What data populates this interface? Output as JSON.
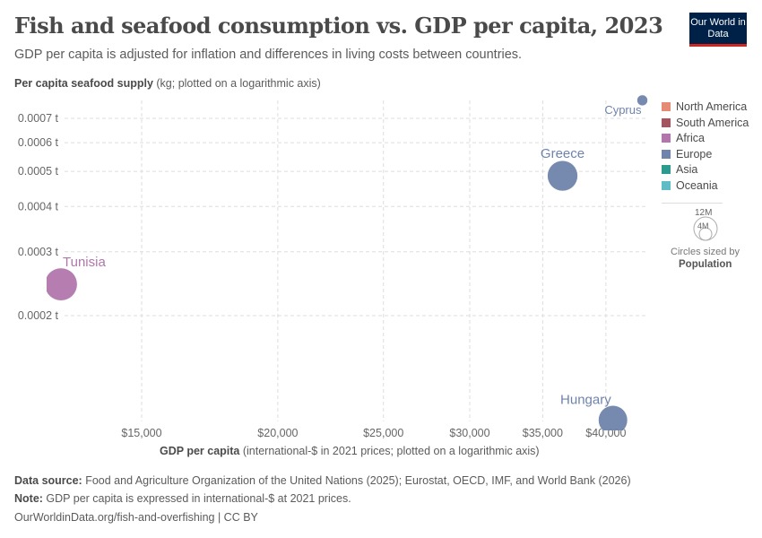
{
  "title": "Fish and seafood consumption vs. GDP per capita, 2023",
  "subtitle": "GDP per capita is adjusted for inflation and differences in living costs between countries.",
  "logo": "Our World in Data",
  "chart_data": {
    "type": "scatter",
    "ylabel_bold": "Per capita seafood supply",
    "ylabel_rest": " (kg; plotted on a logarithmic axis)",
    "xlabel_bold": "GDP per capita",
    "xlabel_rest": " (international-$ in 2021 prices; plotted on a logarithmic axis)",
    "xscale": "log",
    "yscale": "log",
    "xticks": [
      {
        "v": 15000,
        "label": "$15,000"
      },
      {
        "v": 20000,
        "label": "$20,000"
      },
      {
        "v": 25000,
        "label": "$25,000"
      },
      {
        "v": 30000,
        "label": "$30,000"
      },
      {
        "v": 35000,
        "label": "$35,000"
      },
      {
        "v": 40000,
        "label": "$40,000"
      }
    ],
    "yticks": [
      {
        "v": 0.0002,
        "label": "0.0002 t"
      },
      {
        "v": 0.0003,
        "label": "0.0003 t"
      },
      {
        "v": 0.0004,
        "label": "0.0004 t"
      },
      {
        "v": 0.0005,
        "label": "0.0005 t"
      },
      {
        "v": 0.0006,
        "label": "0.0006 t"
      },
      {
        "v": 0.0007,
        "label": "0.0007 t"
      }
    ],
    "points": [
      {
        "name": "Tunisia",
        "x": 12650,
        "y": 0.000244,
        "population": 12000000,
        "continent": "Africa"
      },
      {
        "name": "Greece",
        "x": 36500,
        "y": 0.000486,
        "population": 10400000,
        "continent": "Europe"
      },
      {
        "name": "Hungary",
        "x": 40600,
        "y": 0.000103,
        "population": 9600000,
        "continent": "Europe"
      },
      {
        "name": "Cyprus",
        "x": 43200,
        "y": 0.000785,
        "population": 1300000,
        "continent": "Europe"
      }
    ],
    "legend": [
      {
        "name": "North America",
        "color": "#e58a74"
      },
      {
        "name": "South America",
        "color": "#a2555f"
      },
      {
        "name": "Africa",
        "color": "#b276ac"
      },
      {
        "name": "Europe",
        "color": "#6f83ab"
      },
      {
        "name": "Asia",
        "color": "#2c9b8e"
      },
      {
        "name": "Oceania",
        "color": "#5fbcc6"
      }
    ],
    "size_legend": {
      "large": "12M",
      "small": "4M",
      "caption": "Circles sized by",
      "variable": "Population"
    },
    "grid": true,
    "legend_position": "right"
  },
  "footer": {
    "source_label": "Data source:",
    "source": " Food and Agriculture Organization of the United Nations (2025); Eurostat, OECD, IMF, and World Bank (2026)",
    "note_label": "Note:",
    "note": " GDP per capita is expressed in international-$ at 2021 prices.",
    "link": "OurWorldinData.org/fish-and-overfishing | CC BY"
  }
}
